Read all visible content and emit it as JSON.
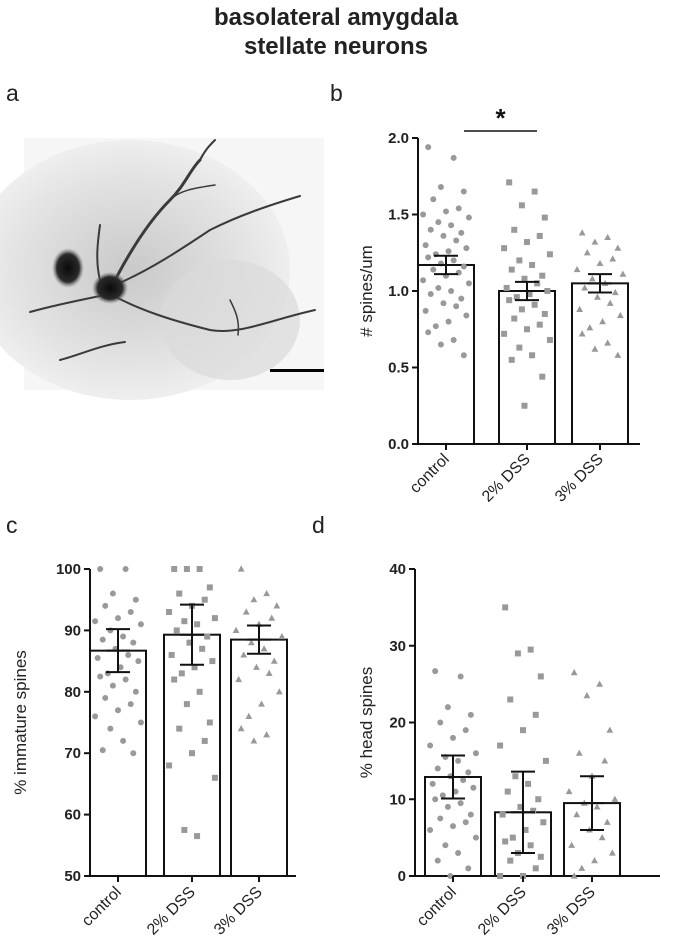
{
  "figure": {
    "title_line1": "basolateral amygdala",
    "title_line2": "stellate neurons",
    "panel_letters": [
      "a",
      "b",
      "c",
      "d"
    ]
  },
  "colors": {
    "bar_fill": "#ffffff",
    "bar_stroke": "#111111",
    "point": "#999999",
    "text": "#222222"
  },
  "micrograph": {
    "description_icon": "neuron-micrograph-image",
    "scale_bar": true
  },
  "chart_data": [
    {
      "panel": "b",
      "type": "bar",
      "categories": [
        "control",
        "2% DSS",
        "3% DSS"
      ],
      "markers": [
        "circle",
        "square",
        "triangle"
      ],
      "values": [
        1.17,
        1.0,
        1.05
      ],
      "errors": [
        0.06,
        0.06,
        0.06
      ],
      "ylabel": "# spines/um",
      "ylim": [
        0,
        2.0
      ],
      "yticks": [
        0.0,
        0.5,
        1.0,
        1.5,
        2.0
      ],
      "ytick_labels": [
        "0.0",
        "0.5",
        "1.0",
        "1.5",
        "2.0"
      ],
      "grid": false,
      "significance": {
        "from": 0,
        "to": 1,
        "label": "*"
      },
      "points": [
        [
          1.94,
          1.87,
          1.68,
          1.65,
          1.6,
          1.54,
          1.52,
          1.5,
          1.48,
          1.45,
          1.43,
          1.4,
          1.38,
          1.36,
          1.33,
          1.3,
          1.28,
          1.26,
          1.24,
          1.22,
          1.2,
          1.18,
          1.16,
          1.14,
          1.12,
          1.1,
          1.07,
          1.05,
          1.02,
          1.0,
          0.98,
          0.95,
          0.92,
          0.9,
          0.87,
          0.84,
          0.8,
          0.77,
          0.73,
          0.68,
          0.65,
          0.58
        ],
        [
          1.71,
          1.65,
          1.56,
          1.48,
          1.4,
          1.36,
          1.32,
          1.28,
          1.24,
          1.2,
          1.17,
          1.14,
          1.1,
          1.08,
          1.05,
          1.02,
          1.0,
          0.98,
          0.96,
          0.94,
          0.91,
          0.88,
          0.85,
          0.82,
          0.78,
          0.75,
          0.72,
          0.68,
          0.63,
          0.58,
          0.55,
          0.44,
          0.25
        ],
        [
          1.38,
          1.35,
          1.32,
          1.28,
          1.25,
          1.21,
          1.18,
          1.14,
          1.11,
          1.08,
          1.05,
          1.02,
          0.99,
          0.96,
          0.92,
          0.88,
          0.84,
          0.8,
          0.76,
          0.72,
          0.66,
          0.62,
          0.58
        ]
      ]
    },
    {
      "panel": "c",
      "type": "bar",
      "categories": [
        "control",
        "2% DSS",
        "3% DSS"
      ],
      "markers": [
        "circle",
        "square",
        "triangle"
      ],
      "values": [
        86.7,
        89.3,
        88.5
      ],
      "errors": [
        3.5,
        4.9,
        2.3
      ],
      "ylabel": "% immature spines",
      "ylim": [
        50,
        100
      ],
      "yticks": [
        50,
        60,
        70,
        80,
        90,
        100
      ],
      "ytick_labels": [
        "50",
        "60",
        "70",
        "80",
        "90",
        "100"
      ],
      "grid": false,
      "points": [
        [
          100,
          100,
          96,
          95,
          94,
          93,
          92,
          91.5,
          91,
          90,
          89,
          88.5,
          88,
          87,
          86,
          85.5,
          85,
          84,
          83,
          82.5,
          82,
          81,
          80,
          79,
          78,
          77,
          76,
          75,
          74,
          72,
          70.5,
          70
        ],
        [
          100,
          100,
          100,
          97,
          96,
          95,
          94,
          93,
          92,
          91.5,
          91,
          90,
          89,
          88,
          87,
          86,
          85,
          84,
          83,
          82,
          80,
          78,
          75,
          74,
          72,
          70,
          68,
          66,
          57.5,
          56.5
        ],
        [
          100,
          96,
          95,
          94,
          93,
          92,
          91,
          90,
          89,
          88,
          87,
          86,
          85,
          84,
          83,
          82,
          80,
          78,
          76,
          74,
          73,
          72
        ]
      ]
    },
    {
      "panel": "d",
      "type": "bar",
      "categories": [
        "control",
        "2% DSS",
        "3% DSS"
      ],
      "markers": [
        "circle",
        "square",
        "triangle"
      ],
      "values": [
        12.9,
        8.3,
        9.5
      ],
      "errors": [
        2.8,
        5.3,
        3.5
      ],
      "ylabel": "% head spines",
      "ylim": [
        0,
        40
      ],
      "yticks": [
        0,
        10,
        20,
        30,
        40
      ],
      "ytick_labels": [
        "0",
        "10",
        "20",
        "30",
        "40"
      ],
      "grid": false,
      "points": [
        [
          26.7,
          26,
          22,
          21,
          20,
          19,
          18,
          17,
          16,
          15.5,
          15,
          14,
          13.5,
          13,
          12.5,
          12,
          11.5,
          11,
          10.5,
          10,
          9.5,
          9,
          8,
          7.5,
          7,
          6.5,
          6,
          5,
          4,
          3,
          2,
          1,
          0
        ],
        [
          35,
          29.5,
          29,
          26,
          23,
          21,
          19,
          17,
          15,
          13,
          12,
          11,
          10,
          9,
          8.5,
          8,
          7,
          6,
          5,
          4.5,
          4,
          3,
          2.5,
          2,
          1,
          0,
          0
        ],
        [
          26.5,
          25,
          23.5,
          19,
          16,
          15,
          13,
          11,
          10,
          9.5,
          9,
          8,
          7,
          6,
          5,
          4,
          3,
          2,
          1,
          0
        ]
      ]
    }
  ]
}
